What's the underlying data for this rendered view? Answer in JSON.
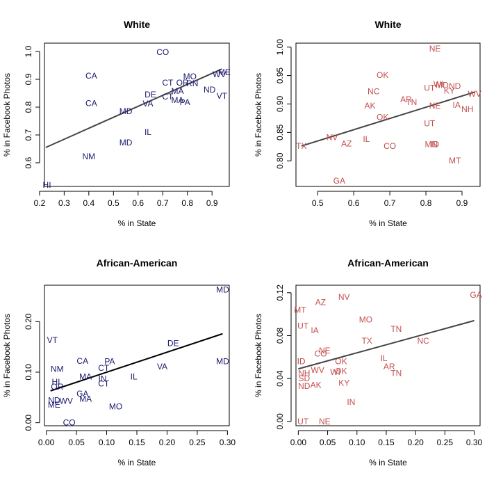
{
  "colors": {
    "navy": "#1a1a6e",
    "red": "#c44e4e",
    "line_dark": "#000000",
    "line_grey": "#444444"
  },
  "chart_data": [
    {
      "type": "scatter",
      "title": "White",
      "xlabel": "% in State",
      "ylabel": "% in Facebook Photos",
      "xlim": [
        0.22,
        0.97
      ],
      "ylim": [
        0.515,
        1.03
      ],
      "xticks": [
        0.2,
        0.3,
        0.4,
        0.5,
        0.6,
        0.7,
        0.8,
        0.9
      ],
      "xtick_labels": [
        "0.2",
        "0.3",
        "0.4",
        "0.5",
        "0.6",
        "0.7",
        "0.8",
        "0.9"
      ],
      "yticks": [
        0.6,
        0.7,
        0.8,
        0.9,
        1.0
      ],
      "ytick_labels": [
        "0.6",
        "0.7",
        "0.8",
        "0.9",
        "1.0"
      ],
      "point_color": "#1a1a6e",
      "line_color": "#444444",
      "fit": [
        [
          0.225,
          0.655
        ],
        [
          0.94,
          0.937
        ]
      ],
      "points": [
        {
          "label": "CO",
          "x": 0.7,
          "y": 0.998
        },
        {
          "label": "CA",
          "x": 0.41,
          "y": 0.912
        },
        {
          "label": "MO",
          "x": 0.81,
          "y": 0.91
        },
        {
          "label": "ME",
          "x": 0.95,
          "y": 0.925
        },
        {
          "label": "WV",
          "x": 0.93,
          "y": 0.918
        },
        {
          "label": "CT",
          "x": 0.72,
          "y": 0.888
        },
        {
          "label": "OR",
          "x": 0.78,
          "y": 0.888
        },
        {
          "label": "RN",
          "x": 0.82,
          "y": 0.885
        },
        {
          "label": "ND",
          "x": 0.89,
          "y": 0.863
        },
        {
          "label": "MA",
          "x": 0.76,
          "y": 0.858
        },
        {
          "label": "DE",
          "x": 0.65,
          "y": 0.845
        },
        {
          "label": "CT",
          "x": 0.72,
          "y": 0.838
        },
        {
          "label": "VT",
          "x": 0.94,
          "y": 0.84
        },
        {
          "label": "CA",
          "x": 0.41,
          "y": 0.814
        },
        {
          "label": "VA",
          "x": 0.64,
          "y": 0.812
        },
        {
          "label": "MA",
          "x": 0.76,
          "y": 0.825
        },
        {
          "label": "PA",
          "x": 0.79,
          "y": 0.818
        },
        {
          "label": "MD",
          "x": 0.55,
          "y": 0.785
        },
        {
          "label": "IL",
          "x": 0.64,
          "y": 0.71
        },
        {
          "label": "MD",
          "x": 0.55,
          "y": 0.673
        },
        {
          "label": "NM",
          "x": 0.4,
          "y": 0.623
        },
        {
          "label": "HI",
          "x": 0.23,
          "y": 0.52
        }
      ]
    },
    {
      "type": "scatter",
      "title": "White",
      "xlabel": "% in State",
      "ylabel": "% in Facebook Photos",
      "xlim": [
        0.44,
        0.95
      ],
      "ylim": [
        0.755,
        1.007
      ],
      "xticks": [
        0.5,
        0.6,
        0.7,
        0.8,
        0.9
      ],
      "xtick_labels": [
        "0.5",
        "0.6",
        "0.7",
        "0.8",
        "0.9"
      ],
      "yticks": [
        0.8,
        0.85,
        0.9,
        0.95,
        1.0
      ],
      "ytick_labels": [
        "0.80",
        "0.85",
        "0.90",
        "0.95",
        "1.00"
      ],
      "point_color": "#c44e4e",
      "line_color": "#444444",
      "fit": [
        [
          0.455,
          0.826
        ],
        [
          0.935,
          0.921
        ]
      ],
      "points": [
        {
          "label": "NE",
          "x": 0.825,
          "y": 0.997
        },
        {
          "label": "OK",
          "x": 0.68,
          "y": 0.951
        },
        {
          "label": "WI",
          "x": 0.835,
          "y": 0.935
        },
        {
          "label": "UT",
          "x": 0.81,
          "y": 0.928
        },
        {
          "label": "MD",
          "x": 0.845,
          "y": 0.933
        },
        {
          "label": "ND",
          "x": 0.88,
          "y": 0.931
        },
        {
          "label": "KY",
          "x": 0.865,
          "y": 0.923
        },
        {
          "label": "NC",
          "x": 0.655,
          "y": 0.922
        },
        {
          "label": "WV",
          "x": 0.935,
          "y": 0.918
        },
        {
          "label": "AR",
          "x": 0.745,
          "y": 0.908
        },
        {
          "label": "TN",
          "x": 0.76,
          "y": 0.903
        },
        {
          "label": "AK",
          "x": 0.645,
          "y": 0.897
        },
        {
          "label": "NE",
          "x": 0.825,
          "y": 0.897
        },
        {
          "label": "IA",
          "x": 0.885,
          "y": 0.898
        },
        {
          "label": "NH",
          "x": 0.915,
          "y": 0.891
        },
        {
          "label": "OK",
          "x": 0.68,
          "y": 0.877
        },
        {
          "label": "UT",
          "x": 0.81,
          "y": 0.866
        },
        {
          "label": "NV",
          "x": 0.54,
          "y": 0.841
        },
        {
          "label": "IL",
          "x": 0.635,
          "y": 0.838
        },
        {
          "label": "AZ",
          "x": 0.58,
          "y": 0.83
        },
        {
          "label": "TX",
          "x": 0.455,
          "y": 0.826
        },
        {
          "label": "CO",
          "x": 0.7,
          "y": 0.826
        },
        {
          "label": "MN",
          "x": 0.815,
          "y": 0.829
        },
        {
          "label": "ID",
          "x": 0.825,
          "y": 0.829
        },
        {
          "label": "MT",
          "x": 0.88,
          "y": 0.8
        },
        {
          "label": "GA",
          "x": 0.56,
          "y": 0.765
        }
      ]
    },
    {
      "type": "scatter",
      "title": "African-American",
      "xlabel": "% in State",
      "ylabel": "% in Facebook Photos",
      "xlim": [
        -0.003,
        0.303
      ],
      "ylim": [
        -0.006,
        0.272
      ],
      "xticks": [
        0.0,
        0.05,
        0.1,
        0.15,
        0.2,
        0.25,
        0.3
      ],
      "xtick_labels": [
        "0.00",
        "0.05",
        "0.10",
        "0.15",
        "0.20",
        "0.25",
        "0.30"
      ],
      "yticks": [
        0.0,
        0.1,
        0.2
      ],
      "ytick_labels": [
        "0.00",
        "0.10",
        "0.20"
      ],
      "point_color": "#1a1a6e",
      "line_color": "#000000",
      "fit": [
        [
          0.007,
          0.063
        ],
        [
          0.292,
          0.176
        ]
      ],
      "points": [
        {
          "label": "MD",
          "x": 0.292,
          "y": 0.263
        },
        {
          "label": "VT",
          "x": 0.01,
          "y": 0.163
        },
        {
          "label": "DE",
          "x": 0.21,
          "y": 0.157
        },
        {
          "label": "CA",
          "x": 0.06,
          "y": 0.122
        },
        {
          "label": "PA",
          "x": 0.105,
          "y": 0.121
        },
        {
          "label": "MD",
          "x": 0.292,
          "y": 0.121
        },
        {
          "label": "VA",
          "x": 0.192,
          "y": 0.111
        },
        {
          "label": "NM",
          "x": 0.018,
          "y": 0.106
        },
        {
          "label": "CT",
          "x": 0.095,
          "y": 0.108
        },
        {
          "label": "MA",
          "x": 0.065,
          "y": 0.091
        },
        {
          "label": "IN",
          "x": 0.093,
          "y": 0.087
        },
        {
          "label": "IL",
          "x": 0.145,
          "y": 0.091
        },
        {
          "label": "HI",
          "x": 0.016,
          "y": 0.081
        },
        {
          "label": "CT",
          "x": 0.095,
          "y": 0.077
        },
        {
          "label": "OR",
          "x": 0.018,
          "y": 0.071
        },
        {
          "label": "GA",
          "x": 0.06,
          "y": 0.057
        },
        {
          "label": "MA",
          "x": 0.065,
          "y": 0.047
        },
        {
          "label": "ND",
          "x": 0.013,
          "y": 0.044
        },
        {
          "label": "WV",
          "x": 0.033,
          "y": 0.043
        },
        {
          "label": "ME",
          "x": 0.013,
          "y": 0.035
        },
        {
          "label": "MO",
          "x": 0.115,
          "y": 0.032
        },
        {
          "label": "CO",
          "x": 0.038,
          "y": 0.0
        }
      ]
    },
    {
      "type": "scatter",
      "title": "African-American",
      "xlabel": "% in State",
      "ylabel": "% in Facebook Photos",
      "xlim": [
        -0.004,
        0.31
      ],
      "ylim": [
        -0.004,
        0.127
      ],
      "xticks": [
        0.0,
        0.05,
        0.1,
        0.15,
        0.2,
        0.25,
        0.3
      ],
      "xtick_labels": [
        "0.00",
        "0.05",
        "0.10",
        "0.15",
        "0.20",
        "0.25",
        "0.30"
      ],
      "yticks": [
        0.0,
        0.04,
        0.08,
        0.12
      ],
      "ytick_labels": [
        "0.00",
        "0.04",
        "0.08",
        "0.12"
      ],
      "point_color": "#c44e4e",
      "line_color": "#444444",
      "fit": [
        [
          0.0,
          0.049
        ],
        [
          0.3,
          0.094
        ]
      ],
      "points": [
        {
          "label": "GA",
          "x": 0.303,
          "y": 0.118
        },
        {
          "label": "NV",
          "x": 0.078,
          "y": 0.116
        },
        {
          "label": "AZ",
          "x": 0.038,
          "y": 0.111
        },
        {
          "label": "MT",
          "x": 0.003,
          "y": 0.104
        },
        {
          "label": "MO",
          "x": 0.115,
          "y": 0.095
        },
        {
          "label": "UT",
          "x": 0.008,
          "y": 0.089
        },
        {
          "label": "IA",
          "x": 0.028,
          "y": 0.085
        },
        {
          "label": "TN",
          "x": 0.167,
          "y": 0.086
        },
        {
          "label": "TX",
          "x": 0.117,
          "y": 0.075
        },
        {
          "label": "NC",
          "x": 0.213,
          "y": 0.075
        },
        {
          "label": "NE",
          "x": 0.045,
          "y": 0.066
        },
        {
          "label": "CO",
          "x": 0.038,
          "y": 0.063
        },
        {
          "label": "ID",
          "x": 0.005,
          "y": 0.056
        },
        {
          "label": "IL",
          "x": 0.146,
          "y": 0.059
        },
        {
          "label": "OK",
          "x": 0.073,
          "y": 0.056
        },
        {
          "label": "AR",
          "x": 0.155,
          "y": 0.051
        },
        {
          "label": "WV",
          "x": 0.033,
          "y": 0.048
        },
        {
          "label": "WI",
          "x": 0.063,
          "y": 0.046
        },
        {
          "label": "OK",
          "x": 0.073,
          "y": 0.047
        },
        {
          "label": "NH",
          "x": 0.01,
          "y": 0.045
        },
        {
          "label": "TN",
          "x": 0.167,
          "y": 0.045
        },
        {
          "label": "SD",
          "x": 0.01,
          "y": 0.04
        },
        {
          "label": "KY",
          "x": 0.078,
          "y": 0.036
        },
        {
          "label": "AK",
          "x": 0.03,
          "y": 0.034
        },
        {
          "label": "ND",
          "x": 0.01,
          "y": 0.033
        },
        {
          "label": "IN",
          "x": 0.09,
          "y": 0.018
        },
        {
          "label": "UT",
          "x": 0.008,
          "y": 0.0
        },
        {
          "label": "NE",
          "x": 0.045,
          "y": 0.0
        }
      ]
    }
  ]
}
